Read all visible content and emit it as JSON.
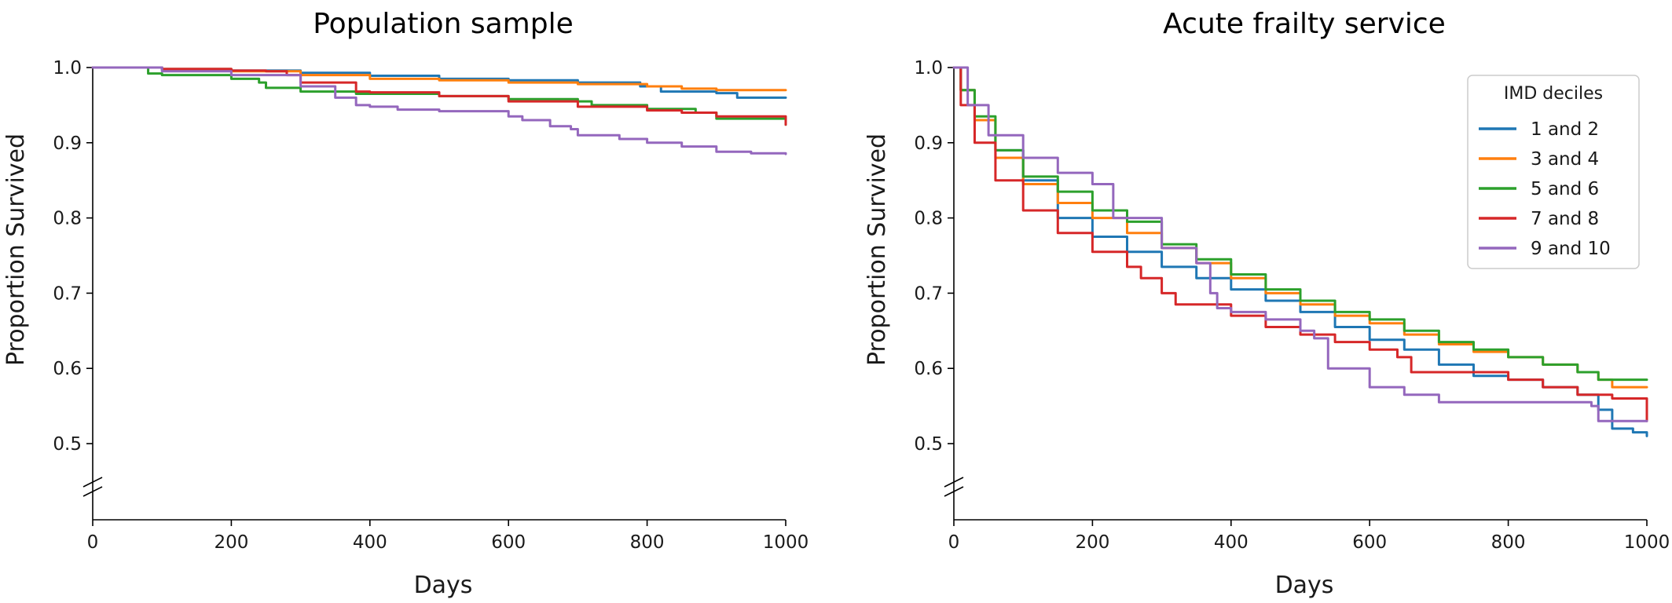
{
  "chart_data": [
    {
      "type": "line",
      "title": "Population sample",
      "xlabel": "Days",
      "ylabel": "Proportion Survived",
      "xlim": [
        0,
        1000
      ],
      "ylim": [
        0.5,
        1.0
      ],
      "y_axis_break": true,
      "xticks": [
        "0",
        "200",
        "400",
        "600",
        "800",
        "1000"
      ],
      "yticks": [
        "0.5",
        "0.6",
        "0.7",
        "0.8",
        "0.9",
        "1.0"
      ],
      "grid": false,
      "legend": null,
      "series": [
        {
          "color": "#1f77b4",
          "points": [
            [
              0,
              1.0
            ],
            [
              100,
              0.998
            ],
            [
              200,
              0.996
            ],
            [
              300,
              0.993
            ],
            [
              400,
              0.989
            ],
            [
              500,
              0.985
            ],
            [
              600,
              0.983
            ],
            [
              700,
              0.98
            ],
            [
              790,
              0.975
            ],
            [
              820,
              0.968
            ],
            [
              900,
              0.966
            ],
            [
              930,
              0.96
            ],
            [
              1000,
              0.96
            ]
          ]
        },
        {
          "color": "#ff7f0e",
          "points": [
            [
              0,
              1.0
            ],
            [
              100,
              0.998
            ],
            [
              200,
              0.995
            ],
            [
              300,
              0.99
            ],
            [
              400,
              0.985
            ],
            [
              500,
              0.983
            ],
            [
              600,
              0.98
            ],
            [
              700,
              0.978
            ],
            [
              800,
              0.975
            ],
            [
              850,
              0.972
            ],
            [
              900,
              0.97
            ],
            [
              1000,
              0.97
            ]
          ]
        },
        {
          "color": "#2ca02c",
          "points": [
            [
              0,
              1.0
            ],
            [
              80,
              0.992
            ],
            [
              100,
              0.99
            ],
            [
              200,
              0.985
            ],
            [
              240,
              0.98
            ],
            [
              250,
              0.973
            ],
            [
              300,
              0.968
            ],
            [
              380,
              0.965
            ],
            [
              400,
              0.965
            ],
            [
              500,
              0.962
            ],
            [
              600,
              0.958
            ],
            [
              700,
              0.955
            ],
            [
              720,
              0.95
            ],
            [
              800,
              0.945
            ],
            [
              870,
              0.94
            ],
            [
              900,
              0.932
            ],
            [
              1000,
              0.924
            ]
          ]
        },
        {
          "color": "#d62728",
          "points": [
            [
              0,
              1.0
            ],
            [
              100,
              0.998
            ],
            [
              200,
              0.996
            ],
            [
              250,
              0.995
            ],
            [
              280,
              0.99
            ],
            [
              300,
              0.98
            ],
            [
              380,
              0.968
            ],
            [
              400,
              0.967
            ],
            [
              500,
              0.962
            ],
            [
              600,
              0.955
            ],
            [
              700,
              0.948
            ],
            [
              800,
              0.943
            ],
            [
              850,
              0.94
            ],
            [
              900,
              0.935
            ],
            [
              1000,
              0.924
            ]
          ]
        },
        {
          "color": "#9467bd",
          "points": [
            [
              0,
              1.0
            ],
            [
              100,
              0.995
            ],
            [
              200,
              0.99
            ],
            [
              300,
              0.975
            ],
            [
              350,
              0.96
            ],
            [
              380,
              0.95
            ],
            [
              400,
              0.948
            ],
            [
              440,
              0.944
            ],
            [
              500,
              0.942
            ],
            [
              600,
              0.935
            ],
            [
              620,
              0.93
            ],
            [
              660,
              0.922
            ],
            [
              690,
              0.918
            ],
            [
              700,
              0.91
            ],
            [
              760,
              0.905
            ],
            [
              800,
              0.9
            ],
            [
              850,
              0.895
            ],
            [
              900,
              0.888
            ],
            [
              950,
              0.886
            ],
            [
              1000,
              0.885
            ]
          ]
        }
      ]
    },
    {
      "type": "line",
      "title": "Acute frailty service",
      "xlabel": "Days",
      "ylabel": "Proportion Survived",
      "xlim": [
        0,
        1000
      ],
      "ylim": [
        0.5,
        1.0
      ],
      "y_axis_break": true,
      "xticks": [
        "0",
        "200",
        "400",
        "600",
        "800",
        "1000"
      ],
      "yticks": [
        "0.5",
        "0.6",
        "0.7",
        "0.8",
        "0.9",
        "1.0"
      ],
      "grid": false,
      "legend": {
        "title": "IMD deciles",
        "placement": "top-right"
      },
      "series": [
        {
          "name": "1 and 2",
          "color": "#1f77b4",
          "points": [
            [
              0,
              1.0
            ],
            [
              10,
              0.97
            ],
            [
              30,
              0.93
            ],
            [
              60,
              0.89
            ],
            [
              100,
              0.85
            ],
            [
              150,
              0.8
            ],
            [
              200,
              0.775
            ],
            [
              250,
              0.755
            ],
            [
              300,
              0.735
            ],
            [
              350,
              0.72
            ],
            [
              400,
              0.705
            ],
            [
              450,
              0.69
            ],
            [
              500,
              0.675
            ],
            [
              550,
              0.655
            ],
            [
              600,
              0.638
            ],
            [
              650,
              0.625
            ],
            [
              700,
              0.605
            ],
            [
              750,
              0.59
            ],
            [
              800,
              0.585
            ],
            [
              850,
              0.575
            ],
            [
              900,
              0.565
            ],
            [
              930,
              0.545
            ],
            [
              950,
              0.52
            ],
            [
              980,
              0.515
            ],
            [
              1000,
              0.51
            ]
          ]
        },
        {
          "name": "3 and 4",
          "color": "#ff7f0e",
          "points": [
            [
              0,
              1.0
            ],
            [
              10,
              0.97
            ],
            [
              30,
              0.93
            ],
            [
              60,
              0.88
            ],
            [
              100,
              0.845
            ],
            [
              150,
              0.82
            ],
            [
              200,
              0.8
            ],
            [
              250,
              0.78
            ],
            [
              300,
              0.76
            ],
            [
              350,
              0.74
            ],
            [
              400,
              0.72
            ],
            [
              450,
              0.7
            ],
            [
              500,
              0.685
            ],
            [
              550,
              0.67
            ],
            [
              600,
              0.66
            ],
            [
              650,
              0.645
            ],
            [
              700,
              0.632
            ],
            [
              750,
              0.622
            ],
            [
              800,
              0.615
            ],
            [
              850,
              0.605
            ],
            [
              900,
              0.595
            ],
            [
              930,
              0.585
            ],
            [
              950,
              0.575
            ],
            [
              1000,
              0.575
            ]
          ]
        },
        {
          "name": "5 and 6",
          "color": "#2ca02c",
          "points": [
            [
              0,
              1.0
            ],
            [
              10,
              0.97
            ],
            [
              30,
              0.935
            ],
            [
              60,
              0.89
            ],
            [
              100,
              0.855
            ],
            [
              150,
              0.835
            ],
            [
              200,
              0.81
            ],
            [
              250,
              0.795
            ],
            [
              300,
              0.765
            ],
            [
              350,
              0.745
            ],
            [
              400,
              0.725
            ],
            [
              450,
              0.705
            ],
            [
              500,
              0.69
            ],
            [
              550,
              0.675
            ],
            [
              600,
              0.665
            ],
            [
              650,
              0.65
            ],
            [
              700,
              0.635
            ],
            [
              750,
              0.625
            ],
            [
              800,
              0.615
            ],
            [
              850,
              0.605
            ],
            [
              900,
              0.595
            ],
            [
              930,
              0.585
            ],
            [
              1000,
              0.585
            ]
          ]
        },
        {
          "name": "7 and 8",
          "color": "#d62728",
          "points": [
            [
              0,
              1.0
            ],
            [
              10,
              0.95
            ],
            [
              30,
              0.9
            ],
            [
              60,
              0.85
            ],
            [
              100,
              0.81
            ],
            [
              150,
              0.78
            ],
            [
              200,
              0.755
            ],
            [
              250,
              0.735
            ],
            [
              270,
              0.72
            ],
            [
              300,
              0.7
            ],
            [
              320,
              0.685
            ],
            [
              400,
              0.67
            ],
            [
              450,
              0.655
            ],
            [
              500,
              0.645
            ],
            [
              550,
              0.635
            ],
            [
              600,
              0.625
            ],
            [
              640,
              0.615
            ],
            [
              660,
              0.595
            ],
            [
              700,
              0.595
            ],
            [
              750,
              0.595
            ],
            [
              800,
              0.585
            ],
            [
              850,
              0.575
            ],
            [
              900,
              0.565
            ],
            [
              950,
              0.56
            ],
            [
              1000,
              0.53
            ]
          ]
        },
        {
          "name": "9 and 10",
          "color": "#9467bd",
          "points": [
            [
              0,
              1.0
            ],
            [
              20,
              0.95
            ],
            [
              50,
              0.91
            ],
            [
              100,
              0.88
            ],
            [
              150,
              0.86
            ],
            [
              200,
              0.845
            ],
            [
              230,
              0.8
            ],
            [
              300,
              0.76
            ],
            [
              350,
              0.74
            ],
            [
              370,
              0.7
            ],
            [
              380,
              0.68
            ],
            [
              400,
              0.675
            ],
            [
              450,
              0.665
            ],
            [
              500,
              0.65
            ],
            [
              520,
              0.64
            ],
            [
              540,
              0.6
            ],
            [
              600,
              0.575
            ],
            [
              650,
              0.565
            ],
            [
              700,
              0.555
            ],
            [
              750,
              0.555
            ],
            [
              800,
              0.555
            ],
            [
              850,
              0.555
            ],
            [
              900,
              0.555
            ],
            [
              920,
              0.55
            ],
            [
              930,
              0.53
            ],
            [
              1000,
              0.53
            ]
          ]
        }
      ]
    }
  ]
}
